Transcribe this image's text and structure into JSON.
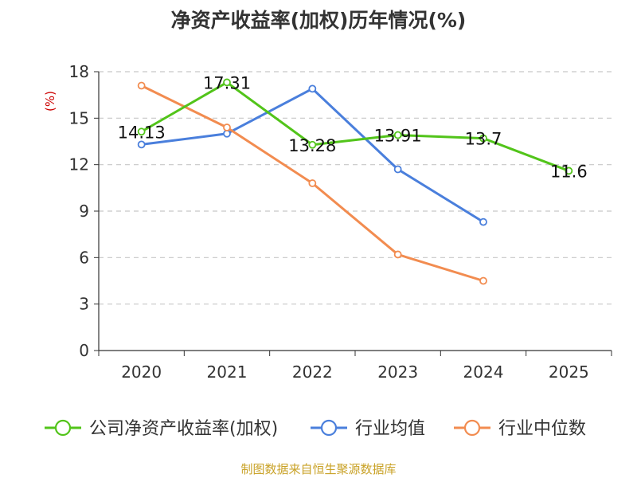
{
  "chart_data": {
    "type": "line",
    "title": "净资产收益率(加权)历年情况(%)",
    "ylabel": "(%)",
    "xlabel": "",
    "categories": [
      "2020",
      "2021",
      "2022",
      "2023",
      "2024",
      "2025"
    ],
    "ylim": [
      0,
      18
    ],
    "yticks": [
      0,
      3,
      6,
      9,
      12,
      15,
      18
    ],
    "grid": true,
    "legend_position": "bottom",
    "series": [
      {
        "name": "公司净资产收益率(加权)",
        "color": "#52c41a",
        "values": [
          14.13,
          17.31,
          13.28,
          13.91,
          13.7,
          11.6
        ],
        "labels": [
          "14.13",
          "17.31",
          "13.28",
          "13.91",
          "13.7",
          "11.6"
        ]
      },
      {
        "name": "行业均值",
        "color": "#4a7fdc",
        "values": [
          13.3,
          14.0,
          16.9,
          11.7,
          8.3,
          null
        ]
      },
      {
        "name": "行业中位数",
        "color": "#f28c50",
        "values": [
          17.1,
          14.4,
          10.8,
          6.2,
          4.5,
          null
        ]
      }
    ]
  },
  "source": "制图数据来自恒生聚源数据库"
}
